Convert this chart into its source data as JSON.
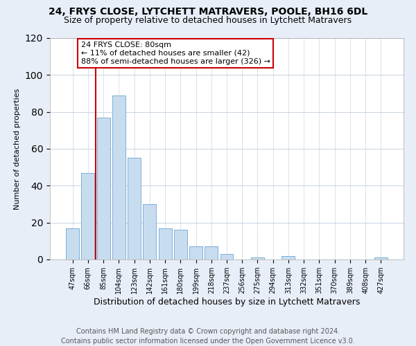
{
  "title": "24, FRYS CLOSE, LYTCHETT MATRAVERS, POOLE, BH16 6DL",
  "subtitle": "Size of property relative to detached houses in Lytchett Matravers",
  "xlabel": "Distribution of detached houses by size in Lytchett Matravers",
  "ylabel": "Number of detached properties",
  "bar_labels": [
    "47sqm",
    "66sqm",
    "85sqm",
    "104sqm",
    "123sqm",
    "142sqm",
    "161sqm",
    "180sqm",
    "199sqm",
    "218sqm",
    "237sqm",
    "256sqm",
    "275sqm",
    "294sqm",
    "313sqm",
    "332sqm",
    "351sqm",
    "370sqm",
    "389sqm",
    "408sqm",
    "427sqm"
  ],
  "bar_values": [
    17,
    47,
    77,
    89,
    55,
    30,
    17,
    16,
    7,
    7,
    3,
    0,
    1,
    0,
    2,
    0,
    0,
    0,
    0,
    0,
    1
  ],
  "bar_color": "#c8dcf0",
  "bar_edge_color": "#7bafd4",
  "vline_x": 1.5,
  "vline_color": "#cc0000",
  "annotation_text": "24 FRYS CLOSE: 80sqm\n← 11% of detached houses are smaller (42)\n88% of semi-detached houses are larger (326) →",
  "annotation_box_color": "white",
  "annotation_box_edge": "#cc0000",
  "ylim": [
    0,
    120
  ],
  "yticks": [
    0,
    20,
    40,
    60,
    80,
    100,
    120
  ],
  "footnote": "Contains HM Land Registry data © Crown copyright and database right 2024.\nContains public sector information licensed under the Open Government Licence v3.0.",
  "bg_color": "#e8eef8",
  "plot_bg_color": "white",
  "title_fontsize": 10,
  "subtitle_fontsize": 9,
  "xlabel_fontsize": 9,
  "ylabel_fontsize": 8,
  "footnote_fontsize": 7
}
